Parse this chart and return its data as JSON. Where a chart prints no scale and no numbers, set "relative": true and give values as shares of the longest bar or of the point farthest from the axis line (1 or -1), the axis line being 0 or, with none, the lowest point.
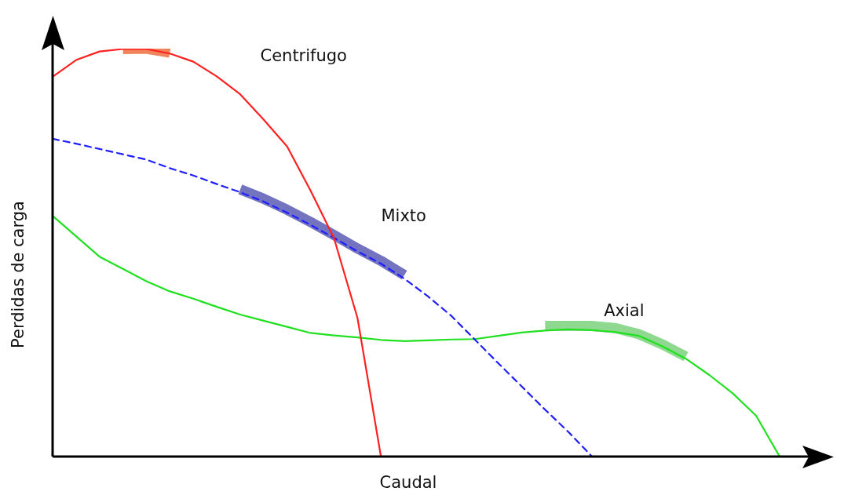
{
  "chart_data": {
    "type": "line",
    "relative": true,
    "xlabel": "Caudal",
    "ylabel": "Perdidas de carga",
    "tick_labels": false,
    "legend": false,
    "marker": "none",
    "categories": [
      null,
      null,
      null,
      null,
      null,
      null,
      null,
      null,
      null,
      null,
      null,
      null,
      null,
      null,
      null,
      null,
      null,
      null,
      null,
      null,
      null,
      null,
      null,
      null,
      null,
      null,
      null,
      null,
      null,
      null,
      null,
      null
    ],
    "series": [
      {
        "color": "#f0845a",
        "values": [
          null,
          null,
          null,
          0.999,
          1,
          0.99,
          null,
          null,
          null,
          null,
          null,
          null,
          null,
          null,
          null,
          null,
          null,
          null,
          null,
          null,
          null,
          null,
          null,
          null,
          null,
          null,
          null,
          null,
          null,
          null,
          null,
          null
        ]
      },
      {
        "color": "#7373c0",
        "values": [
          null,
          null,
          null,
          null,
          null,
          null,
          null,
          null,
          0.655,
          0.632,
          0.605,
          0.575,
          0.543,
          0.51,
          0.48,
          0.445,
          null,
          null,
          null,
          null,
          null,
          null,
          null,
          null,
          null,
          null,
          null,
          null,
          null,
          null,
          null,
          null
        ]
      },
      {
        "color": "#8fd88f",
        "values": [
          null,
          null,
          null,
          null,
          null,
          null,
          null,
          null,
          null,
          null,
          null,
          null,
          null,
          null,
          null,
          null,
          null,
          null,
          null,
          null,
          null,
          0.32,
          0.32,
          0.32,
          0.315,
          0.3,
          0.275,
          0.245,
          null,
          null,
          null,
          null
        ]
      },
      {
        "name": "Centrifugo",
        "color": "#ff2020",
        "line_style": "solid",
        "values": [
          0.931,
          0.972,
          0.993,
          0.999,
          0.999,
          0.988,
          0.968,
          0.932,
          0.888,
          0.826,
          0.76,
          0.652,
          0.535,
          0.34,
          0,
          null,
          null,
          null,
          null,
          null,
          null,
          null,
          null,
          null,
          null,
          null,
          null,
          null,
          null,
          null,
          null,
          null
        ]
      },
      {
        "name": "Mixto",
        "color": "#2020ff",
        "line_style": "dashed",
        "values": [
          0.779,
          0.767,
          0.754,
          0.741,
          0.728,
          0.707,
          0.689,
          0.668,
          0.648,
          0.625,
          0.598,
          0.568,
          0.536,
          0.503,
          0.473,
          0.436,
          0.393,
          0.345,
          0.287,
          0.229,
          0.172,
          0.115,
          0.06,
          0,
          null,
          null,
          null,
          null,
          null,
          null,
          null,
          null
        ]
      },
      {
        "name": "Axial",
        "color": "#20e020",
        "line_style": "solid",
        "values": [
          0.59,
          0.54,
          0.49,
          0.46,
          0.43,
          0.405,
          0.387,
          0.367,
          0.348,
          0.333,
          0.318,
          0.303,
          0.297,
          0.292,
          0.286,
          0.283,
          0.285,
          0.287,
          0.288,
          0.296,
          0.304,
          0.309,
          0.312,
          0.31,
          0.305,
          0.296,
          0.27,
          0.24,
          0.2,
          0.155,
          0.1,
          0
        ]
      }
    ]
  }
}
